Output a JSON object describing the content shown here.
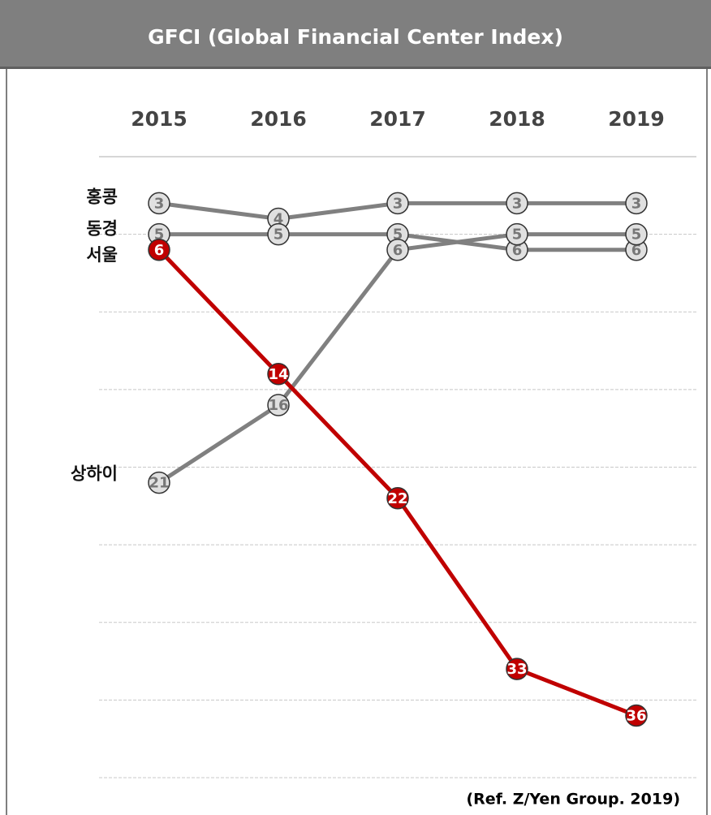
{
  "chart_data": {
    "type": "line",
    "title": "GFCI (Global Financial Center Index)",
    "categories": [
      "2015",
      "2016",
      "2017",
      "2018",
      "2019"
    ],
    "series": [
      {
        "name": "홍콩",
        "color": "#808080",
        "values": [
          3,
          4,
          3,
          3,
          3
        ]
      },
      {
        "name": "동경",
        "color": "#808080",
        "values": [
          5,
          5,
          5,
          6,
          6
        ]
      },
      {
        "name": "서울",
        "color": "#c00000",
        "values": [
          6,
          14,
          22,
          33,
          36
        ]
      },
      {
        "name": "상하이",
        "color": "#808080",
        "values": [
          21,
          16,
          6,
          5,
          5
        ]
      }
    ],
    "ylim": [
      0,
      40
    ],
    "yticks": [
      0,
      5,
      10,
      15,
      20,
      25,
      30,
      35,
      40
    ],
    "y_inverted": true,
    "grid": true,
    "note": "(Ref. Z/Yen Group. 2019)"
  }
}
